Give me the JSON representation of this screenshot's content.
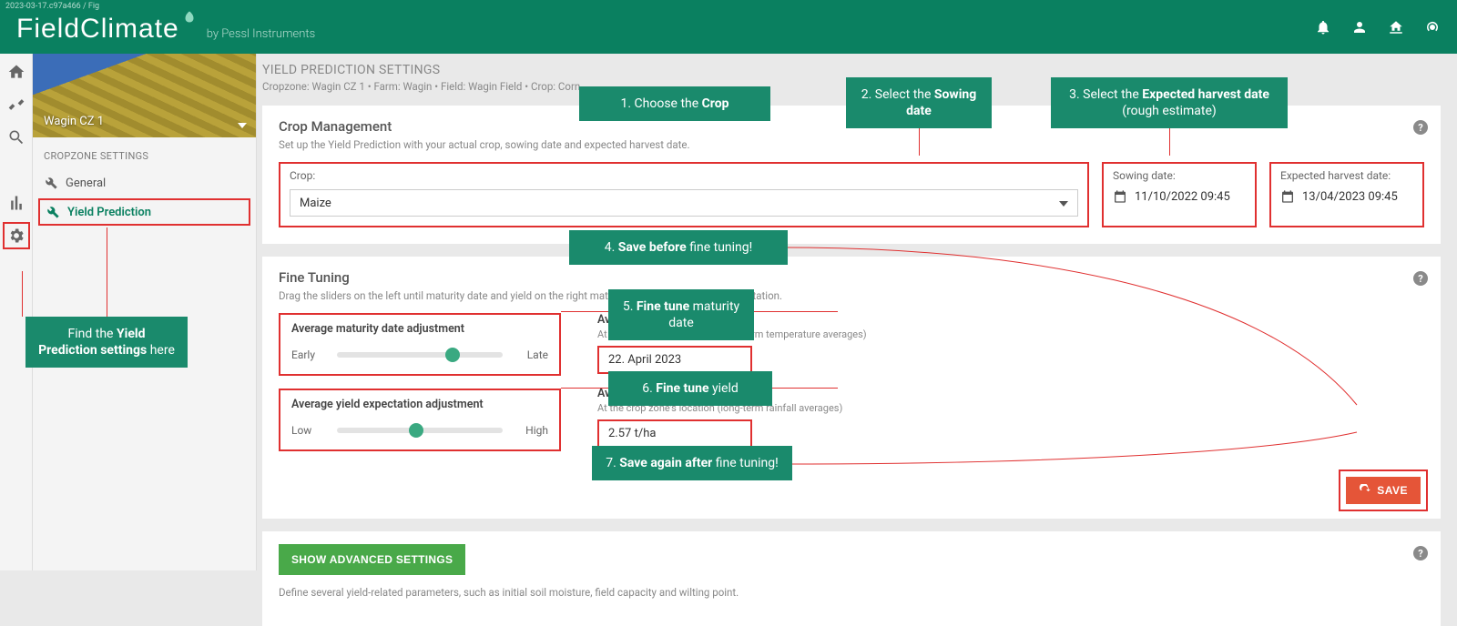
{
  "build_id": "2023-03-17.c97a466 / Fig",
  "brand": {
    "main": "FieldClimate",
    "sub": "by Pessl Instruments"
  },
  "sidebar": {
    "cropzone_name": "Wagin CZ 1",
    "heading": "CROPZONE SETTINGS",
    "items": [
      {
        "label": "General"
      },
      {
        "label": "Yield Prediction"
      }
    ]
  },
  "page": {
    "title": "YIELD PREDICTION SETTINGS",
    "breadcrumb": "Cropzone: Wagin CZ 1 • Farm: Wagin • Field: Wagin Field • Crop: Corn"
  },
  "crop_mgmt": {
    "header": "Crop Management",
    "sub": "Set up the Yield Prediction with your actual crop, sowing date and expected harvest date.",
    "crop_label": "Crop:",
    "crop_value": "Maize",
    "sowing_label": "Sowing date:",
    "sowing_value": "11/10/2022 09:45",
    "harvest_label": "Expected harvest date:",
    "harvest_value": "13/04/2023 09:45"
  },
  "fine_tuning": {
    "header": "Fine Tuning",
    "sub": "Drag the sliders on the left until maturity date and yield on the right match the location's average expectation.",
    "maturity": {
      "title": "Average maturity date adjustment",
      "left": "Early",
      "right": "Late",
      "thumb_pct": 70
    },
    "yield": {
      "title": "Average yield expectation adjustment",
      "left": "Low",
      "right": "High",
      "thumb_pct": 48
    },
    "read_maturity": {
      "title": "Average maturity date",
      "sub": "At the crop zone's location (long-term temperature averages)",
      "value": "22. April 2023"
    },
    "read_yield": {
      "title": "Average Yield",
      "sub": "At the crop zone's location (long-term rainfall averages)",
      "value": "2.57 t/ha"
    }
  },
  "save_label": "SAVE",
  "advanced": {
    "button": "SHOW ADVANCED SETTINGS",
    "desc": "Define several yield-related parameters, such as initial soil moisture, field capacity and wilting point."
  },
  "callouts": {
    "c1": {
      "prefix": "1. Choose the ",
      "bold": "Crop"
    },
    "c2": {
      "prefix": "2. Select the ",
      "bold": "Sowing date"
    },
    "c3": {
      "prefix": "3. Select the ",
      "bold": "Expected harvest date",
      "suffix": " (rough estimate)"
    },
    "c4": {
      "prefix": "4. ",
      "bold": "Save before",
      "suffix": " fine tuning!"
    },
    "c5": {
      "prefix": "5. ",
      "bold": "Fine tune",
      "suffix": " maturity date"
    },
    "c6": {
      "prefix": "6. ",
      "bold": "Fine tune",
      "suffix": " yield"
    },
    "c7": {
      "prefix": "7. ",
      "bold": "Save again after",
      "suffix": " fine tuning!"
    },
    "c0a": "Find the ",
    "c0b": "Yield Prediction settings",
    "c0c": " here"
  },
  "colors": {
    "brand_green": "#0a8060",
    "callout_green": "#1a8a6c",
    "red_outline": "#e03030",
    "save_orange": "#e55538",
    "adv_green": "#49a949"
  }
}
